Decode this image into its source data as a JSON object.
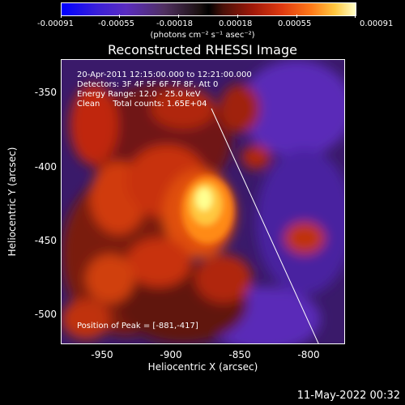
{
  "colorbar": {
    "ticks": [
      "-0.00091",
      "-0.00055",
      "-0.00018",
      "0.00018",
      "0.00055",
      "0.00091"
    ],
    "unit_label": "(photons cm⁻² s⁻¹ asec⁻²)"
  },
  "plot": {
    "title": "Reconstructed RHESSI Image",
    "info": {
      "time_range": "20-Apr-2011 12:15:00.000 to 12:21:00.000",
      "detectors": "Detectors: 3F 4F 5F 6F 7F 8F, Att 0",
      "energy": "Energy Range: 12.0 - 25.0 keV",
      "clean": "Clean     Total counts: 1.65E+04"
    },
    "peak_label": "Position of Peak = [-881,-417]",
    "xlabel": "Heliocentric X (arcsec)",
    "ylabel": "Heliocentric Y (arcsec)",
    "xticks": [
      "-950",
      "-900",
      "-850",
      "-800"
    ],
    "yticks": [
      "-350",
      "-400",
      "-450",
      "-500"
    ]
  },
  "footer": {
    "date": "11-May-2022 00:32"
  }
}
